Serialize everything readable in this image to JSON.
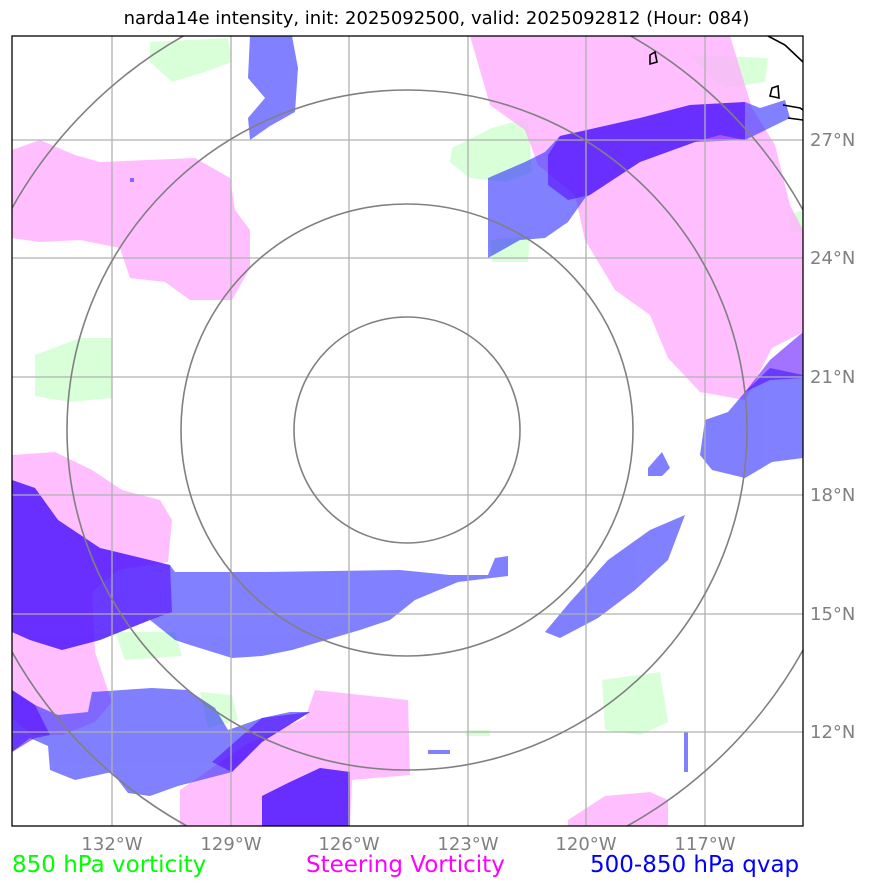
{
  "title": "narda14e intensity, init: 2025092500, valid: 2025092812 (Hour: 084)",
  "axes": {
    "x_ticks": [
      "132°W",
      "129°W",
      "126°W",
      "123°W",
      "120°W",
      "117°W"
    ],
    "y_ticks": [
      "27°N",
      "24°N",
      "21°N",
      "18°N",
      "15°N",
      "12°N"
    ]
  },
  "legend": [
    {
      "label": "850 hPa vorticity",
      "color": "#00ff00"
    },
    {
      "label": "Steering Vorticity",
      "color": "#ff00ff"
    },
    {
      "label": "500-850 hPa qvap",
      "color": "#0000ff"
    }
  ],
  "colors": {
    "vort850": "#ccffcc",
    "steering": "#ffaaff",
    "qvap": "#3333ff",
    "qvap_strong": "#5500ff",
    "grid": "#b0b0b0",
    "range_rings": "#808080",
    "coastline": "#000000"
  }
}
